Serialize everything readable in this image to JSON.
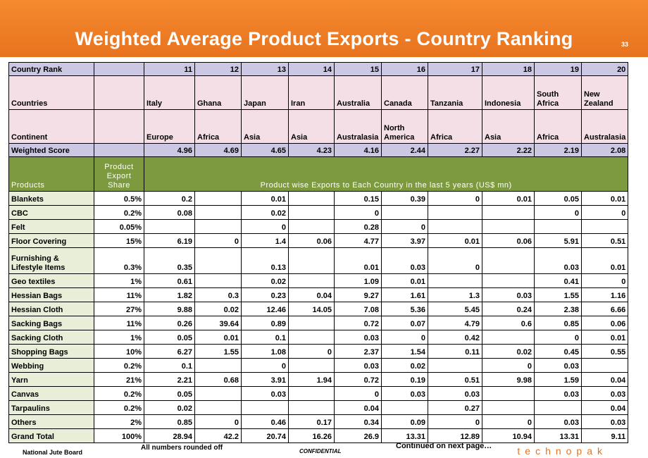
{
  "header": {
    "title": "Weighted Average Product Exports - Country Ranking",
    "page_number": "33",
    "color": "#f07f2a"
  },
  "table": {
    "rank_label": "Country Rank",
    "ranks": [
      "11",
      "12",
      "13",
      "14",
      "15",
      "16",
      "17",
      "18",
      "19",
      "20"
    ],
    "countries_label": "Countries",
    "countries": [
      "Italy",
      "Ghana",
      "Japan",
      "Iran",
      "Australia",
      "Canada",
      "Tanzania",
      "Indonesia",
      "South Africa",
      "New Zealand"
    ],
    "continent_label": "Continent",
    "continents": [
      "Europe",
      "Africa",
      "Asia",
      "Asia",
      "Australasia",
      "North America",
      "Africa",
      "Asia",
      "Africa",
      "Australasia"
    ],
    "score_label": "Weighted Score",
    "scores": [
      "4.96",
      "4.69",
      "4.65",
      "4.23",
      "4.16",
      "2.44",
      "2.27",
      "2.22",
      "2.19",
      "2.08"
    ],
    "products_header": "Products",
    "share_header": "Product Export Share",
    "exports_header": "Product wise Exports to Each Country in the last 5 years (US$ mn)",
    "rows": [
      {
        "product": "Blankets",
        "share": "0.5%",
        "values": [
          "0.2",
          "",
          "0.01",
          "",
          "0.15",
          "0.39",
          "0",
          "0.01",
          "0.05",
          "0.01"
        ]
      },
      {
        "product": "CBC",
        "share": "0.2%",
        "values": [
          "0.08",
          "",
          "0.02",
          "",
          "0",
          "",
          "",
          "",
          "0",
          "0"
        ]
      },
      {
        "product": "Felt",
        "share": "0.05%",
        "values": [
          "",
          "",
          "0",
          "",
          "0.28",
          "0",
          "",
          "",
          "",
          ""
        ]
      },
      {
        "product": "Floor Covering",
        "share": "15%",
        "values": [
          "6.19",
          "0",
          "1.4",
          "0.06",
          "4.77",
          "3.97",
          "0.01",
          "0.06",
          "5.91",
          "0.51"
        ]
      },
      {
        "product": "Furnishing & Lifestyle Items",
        "share": "0.3%",
        "values": [
          "0.35",
          "",
          "0.13",
          "",
          "0.01",
          "0.03",
          "0",
          "",
          "0.03",
          "0.01"
        ]
      },
      {
        "product": "Geo textiles",
        "share": "1%",
        "values": [
          "0.61",
          "",
          "0.02",
          "",
          "1.09",
          "0.01",
          "",
          "",
          "0.41",
          "0"
        ]
      },
      {
        "product": "Hessian Bags",
        "share": "11%",
        "values": [
          "1.82",
          "0.3",
          "0.23",
          "0.04",
          "9.27",
          "1.61",
          "1.3",
          "0.03",
          "1.55",
          "1.16"
        ]
      },
      {
        "product": "Hessian Cloth",
        "share": "27%",
        "values": [
          "9.88",
          "0.02",
          "12.46",
          "14.05",
          "7.08",
          "5.36",
          "5.45",
          "0.24",
          "2.38",
          "6.66"
        ]
      },
      {
        "product": "Sacking Bags",
        "share": "11%",
        "values": [
          "0.26",
          "39.64",
          "0.89",
          "",
          "0.72",
          "0.07",
          "4.79",
          "0.6",
          "0.85",
          "0.06"
        ]
      },
      {
        "product": "Sacking Cloth",
        "share": "1%",
        "values": [
          "0.05",
          "0.01",
          "0.1",
          "",
          "0.03",
          "0",
          "0.42",
          "",
          "0",
          "0.01"
        ]
      },
      {
        "product": "Shopping Bags",
        "share": "10%",
        "values": [
          "6.27",
          "1.55",
          "1.08",
          "0",
          "2.37",
          "1.54",
          "0.11",
          "0.02",
          "0.45",
          "0.55"
        ]
      },
      {
        "product": "Webbing",
        "share": "0.2%",
        "values": [
          "0.1",
          "",
          "0",
          "",
          "0.03",
          "0.02",
          "",
          "0",
          "0.03",
          ""
        ]
      },
      {
        "product": "Yarn",
        "share": "21%",
        "values": [
          "2.21",
          "0.68",
          "3.91",
          "1.94",
          "0.72",
          "0.19",
          "0.51",
          "9.98",
          "1.59",
          "0.04"
        ]
      },
      {
        "product": "Canvas",
        "share": "0.2%",
        "values": [
          "0.05",
          "",
          "0.03",
          "",
          "0",
          "0.03",
          "0.03",
          "",
          "0.03",
          "0.03"
        ]
      },
      {
        "product": "Tarpaulins",
        "share": "0.2%",
        "values": [
          "0.02",
          "",
          "",
          "",
          "0.04",
          "",
          "0.27",
          "",
          "",
          "0.04"
        ]
      },
      {
        "product": "Others",
        "share": "2%",
        "values": [
          "0.85",
          "0",
          "0.46",
          "0.17",
          "0.34",
          "0.09",
          "0",
          "0",
          "0.03",
          "0.03"
        ]
      },
      {
        "product": "Grand Total",
        "share": "100%",
        "values": [
          "28.94",
          "42.2",
          "20.74",
          "16.26",
          "26.9",
          "13.31",
          "12.89",
          "10.94",
          "13.31",
          "9.11"
        ]
      }
    ]
  },
  "footer": {
    "org": "National Jute Board",
    "note": "All numbers rounded off",
    "confidential": "CONFIDENTIAL",
    "continued": "Continued on next page…",
    "logo": "technopak"
  }
}
